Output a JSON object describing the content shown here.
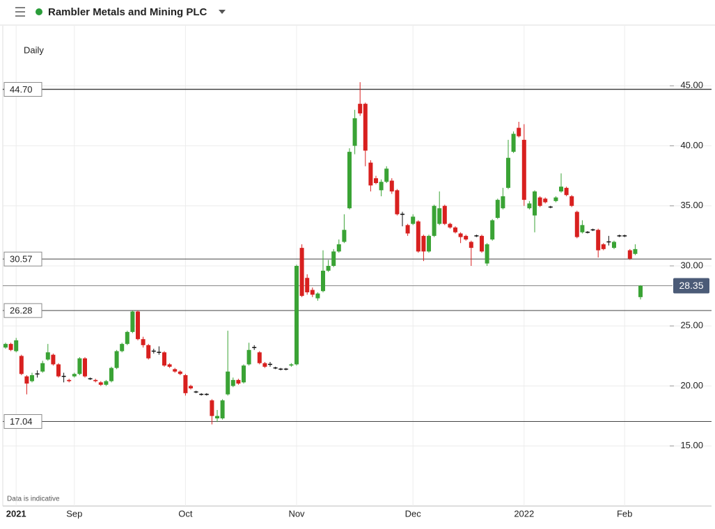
{
  "chart_data": {
    "type": "candlestick",
    "title": "Rambler Metals and Mining PLC",
    "subtitle": "Daily",
    "note": "Data is indicative",
    "up_color": "#3aa335",
    "down_color": "#d8201f",
    "categories": [
      null,
      null,
      "2021",
      null,
      null,
      null,
      null,
      null,
      null,
      null,
      null,
      null,
      null,
      "Sep",
      null,
      null,
      null,
      null,
      null,
      null,
      null,
      null,
      null,
      null,
      null,
      null,
      null,
      null,
      null,
      null,
      null,
      null,
      null,
      null,
      "Oct",
      null,
      null,
      null,
      null,
      null,
      null,
      null,
      null,
      null,
      null,
      null,
      null,
      null,
      null,
      null,
      null,
      null,
      null,
      null,
      null,
      "Nov",
      null,
      null,
      null,
      null,
      null,
      null,
      null,
      null,
      null,
      null,
      null,
      null,
      null,
      null,
      null,
      null,
      null,
      null,
      null,
      null,
      null,
      "Dec",
      null,
      null,
      null,
      null,
      null,
      null,
      null,
      null,
      null,
      null,
      null,
      null,
      null,
      null,
      null,
      null,
      null,
      null,
      null,
      null,
      "2022",
      null,
      null,
      null,
      null,
      null,
      null,
      null,
      null,
      null,
      null,
      null,
      null,
      null,
      null,
      null,
      null,
      null,
      null,
      "Feb",
      null,
      null,
      null
    ],
    "open": [
      23.2,
      23.5,
      22.9,
      22.5,
      20.8,
      20.4,
      21.0,
      21.2,
      22.2,
      22.6,
      21.8,
      20.8,
      20.5,
      20.8,
      21.0,
      22.3,
      20.6,
      20.5,
      20.3,
      20.1,
      20.4,
      21.5,
      22.9,
      23.5,
      24.5,
      26.2,
      23.9,
      23.4,
      22.9,
      22.8,
      22.8,
      21.8,
      21.4,
      21.2,
      20.9,
      20.0,
      19.5,
      19.3,
      19.3,
      18.8,
      17.3,
      17.3,
      19.3,
      20.0,
      20.5,
      20.3,
      21.8,
      23.2,
      22.8,
      21.9,
      21.8,
      21.5,
      21.4,
      21.4,
      21.7,
      21.8,
      31.5,
      29.0,
      28.0,
      27.3,
      27.9,
      29.6,
      30.0,
      31.2,
      32.0,
      34.8,
      40.0,
      43.5,
      43.5,
      38.6,
      37.3,
      36.3,
      37.0,
      37.1,
      36.3,
      34.3,
      33.4,
      33.5,
      33.7,
      32.5,
      31.2,
      32.5,
      33.5,
      35.0,
      33.5,
      33.2,
      32.7,
      32.5,
      32.0,
      32.5,
      32.5,
      30.2,
      32.2,
      34.0,
      34.8,
      36.5,
      39.5,
      41.5,
      40.5,
      34.8,
      34.2,
      35.7,
      35.6,
      34.9,
      35.4,
      36.2,
      36.5,
      35.8,
      34.5,
      32.8,
      32.8,
      33.0,
      33.0,
      31.8,
      32.0,
      31.5,
      32.5,
      32.5,
      31.3,
      31.0,
      27.4
    ],
    "high": [
      23.6,
      23.6,
      24.0,
      22.6,
      20.9,
      21.1,
      21.3,
      22.1,
      23.5,
      22.7,
      21.9,
      21.1,
      20.6,
      21.1,
      22.4,
      22.4,
      20.7,
      20.6,
      20.4,
      20.5,
      21.6,
      23.0,
      23.6,
      24.6,
      26.3,
      26.3,
      24.1,
      23.5,
      23.1,
      23.3,
      22.9,
      21.9,
      21.5,
      21.3,
      21.0,
      20.1,
      19.6,
      19.4,
      19.4,
      18.9,
      18.0,
      18.9,
      24.6,
      20.7,
      20.6,
      21.8,
      23.6,
      23.4,
      22.9,
      22.0,
      22.0,
      21.6,
      21.5,
      21.5,
      21.9,
      30.1,
      31.8,
      29.3,
      28.2,
      27.8,
      31.3,
      30.5,
      31.4,
      32.2,
      34.3,
      39.8,
      43.0,
      45.3,
      43.6,
      38.8,
      37.5,
      37.2,
      38.3,
      37.3,
      36.4,
      34.5,
      33.5,
      34.3,
      33.8,
      32.6,
      32.6,
      35.1,
      36.2,
      35.1,
      33.6,
      33.3,
      32.8,
      32.6,
      32.1,
      32.6,
      32.6,
      31.9,
      33.9,
      35.6,
      36.5,
      40.5,
      41.2,
      42.0,
      41.8,
      35.4,
      36.3,
      35.8,
      35.7,
      35.0,
      35.8,
      37.7,
      36.6,
      35.9,
      34.6,
      33.8,
      32.9,
      33.1,
      33.1,
      31.9,
      32.5,
      32.1,
      32.6,
      32.6,
      31.4,
      31.8,
      28.4
    ],
    "low": [
      23.1,
      22.9,
      22.8,
      20.9,
      19.3,
      20.3,
      20.7,
      21.1,
      22.1,
      21.7,
      20.7,
      20.3,
      20.3,
      20.7,
      20.9,
      20.7,
      20.5,
      20.3,
      20.0,
      20.0,
      20.3,
      21.4,
      22.8,
      23.4,
      24.4,
      23.8,
      23.2,
      22.2,
      22.7,
      22.6,
      21.6,
      21.5,
      21.1,
      20.9,
      19.2,
      19.7,
      19.4,
      19.2,
      19.2,
      16.8,
      17.0,
      17.2,
      19.2,
      19.9,
      20.1,
      20.2,
      21.7,
      23.0,
      21.8,
      21.5,
      21.6,
      21.4,
      21.3,
      21.3,
      21.6,
      21.7,
      27.4,
      27.6,
      27.4,
      27.1,
      27.8,
      29.5,
      29.9,
      31.1,
      31.9,
      34.7,
      39.3,
      42.5,
      38.3,
      36.2,
      36.8,
      35.8,
      36.9,
      36.0,
      34.2,
      33.3,
      32.5,
      33.4,
      31.1,
      30.4,
      31.1,
      32.4,
      33.4,
      33.4,
      33.1,
      32.7,
      31.9,
      32.1,
      30.0,
      32.4,
      31.1,
      30.0,
      32.1,
      33.9,
      34.7,
      36.4,
      39.4,
      40.7,
      35.0,
      34.7,
      32.8,
      34.9,
      35.2,
      34.8,
      35.3,
      36.1,
      35.8,
      34.9,
      32.3,
      32.7,
      32.7,
      32.9,
      30.7,
      31.3,
      31.7,
      31.4,
      32.4,
      32.4,
      30.5,
      30.9,
      27.2
    ],
    "close": [
      23.5,
      23.0,
      23.8,
      21.0,
      20.2,
      20.9,
      21.0,
      21.9,
      22.8,
      21.8,
      20.8,
      20.8,
      20.4,
      21.0,
      22.3,
      20.8,
      20.6,
      20.4,
      20.1,
      20.4,
      21.5,
      22.9,
      23.5,
      24.5,
      26.2,
      23.9,
      23.4,
      22.3,
      22.9,
      22.8,
      21.7,
      21.6,
      21.2,
      21.0,
      19.4,
      19.8,
      19.5,
      19.3,
      19.3,
      17.5,
      17.5,
      18.8,
      21.2,
      20.5,
      20.2,
      21.7,
      23.0,
      23.2,
      21.9,
      21.6,
      21.8,
      21.5,
      21.4,
      21.4,
      21.8,
      30.0,
      27.5,
      27.8,
      27.6,
      27.7,
      29.6,
      30.0,
      31.2,
      31.8,
      33.0,
      39.5,
      42.3,
      42.7,
      39.6,
      36.7,
      36.9,
      37.0,
      38.1,
      36.2,
      34.3,
      34.3,
      32.7,
      34.1,
      31.2,
      31.2,
      32.5,
      35.0,
      34.8,
      33.5,
      33.2,
      32.8,
      32.4,
      32.2,
      31.5,
      32.5,
      31.2,
      31.8,
      33.8,
      35.5,
      35.8,
      39.0,
      41.0,
      40.8,
      35.5,
      35.2,
      36.2,
      35.0,
      35.3,
      34.9,
      35.7,
      36.6,
      35.9,
      35.0,
      32.4,
      33.4,
      32.8,
      33.0,
      31.3,
      31.4,
      32.0,
      32.0,
      32.5,
      32.5,
      30.6,
      31.4,
      28.35
    ],
    "ylim": [
      10,
      50
    ],
    "yticks": [
      {
        "value": 15,
        "label": "15.00"
      },
      {
        "value": 20,
        "label": "20.00"
      },
      {
        "value": 25,
        "label": "25.00"
      },
      {
        "value": 30,
        "label": "30.00"
      },
      {
        "value": 35,
        "label": "35.00"
      },
      {
        "value": 40,
        "label": "40.00"
      },
      {
        "value": 45,
        "label": "45.00"
      }
    ],
    "levels": [
      {
        "value": 44.7,
        "label": "44.70"
      },
      {
        "value": 30.57,
        "label": "30.57"
      },
      {
        "value": 26.28,
        "label": "26.28"
      },
      {
        "value": 17.04,
        "label": "17.04"
      }
    ],
    "last_price": {
      "value": 28.35,
      "label": "28.35"
    },
    "grid": true
  }
}
